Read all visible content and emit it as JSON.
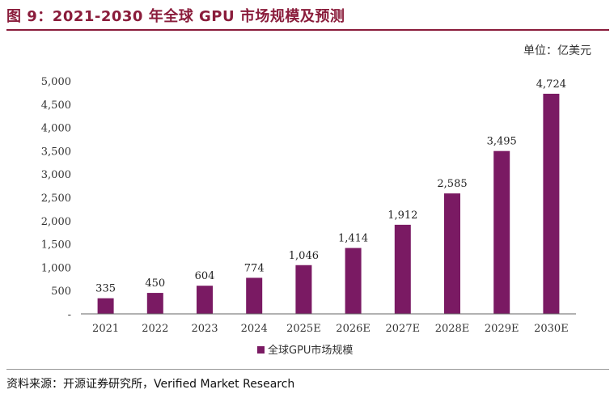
{
  "figure": {
    "title": "图 9：2021-2030 年全球 GPU 市场规模及预测",
    "unit": "单位：亿美元",
    "source": "资料来源：开源证券研究所，Verified Market Research"
  },
  "colors": {
    "bar": "#7a1a63",
    "axis": "#666666",
    "title": "#8a1c3b"
  },
  "chart_data": {
    "type": "bar",
    "categories": [
      "2021",
      "2022",
      "2023",
      "2024",
      "2025E",
      "2026E",
      "2027E",
      "2028E",
      "2029E",
      "2030E"
    ],
    "series": [
      {
        "name": "全球GPU市场规模",
        "values": [
          335,
          450,
          604,
          774,
          1046,
          1414,
          1912,
          2585,
          3495,
          4724
        ]
      }
    ],
    "data_labels": [
      "335",
      "450",
      "604",
      "774",
      "1,046",
      "1,414",
      "1,912",
      "2,585",
      "3,495",
      "4,724"
    ],
    "ylim": [
      0,
      5000
    ],
    "yticks": [
      0,
      500,
      1000,
      1500,
      2000,
      2500,
      3000,
      3500,
      4000,
      4500,
      5000
    ],
    "ytick_labels": [
      "-",
      "500",
      "1,000",
      "1,500",
      "2,000",
      "2,500",
      "3,000",
      "3,500",
      "4,000",
      "4,500",
      "5,000"
    ],
    "grid": false,
    "legend": "bottom-center"
  }
}
